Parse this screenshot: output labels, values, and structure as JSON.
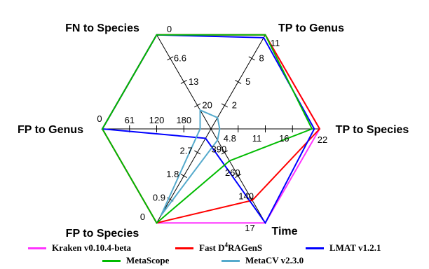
{
  "chart_data": {
    "type": "radar",
    "title": "",
    "axes": [
      {
        "name": "TP to Species",
        "ticks": [
          "4.8",
          "11",
          "16",
          "22"
        ]
      },
      {
        "name": "Time",
        "ticks": [
          "390",
          "260",
          "140",
          "17"
        ]
      },
      {
        "name": "FP to Species",
        "ticks": [
          "2.7",
          "1.8",
          "0.9",
          "0"
        ]
      },
      {
        "name": "FP to Genus",
        "ticks": [
          "180",
          "120",
          "61",
          "0"
        ]
      },
      {
        "name": "FN to Species",
        "ticks": [
          "20",
          "13",
          "6.6",
          "0"
        ]
      },
      {
        "name": "TP to Genus",
        "ticks": [
          "2",
          "5",
          "8",
          "11"
        ]
      }
    ],
    "series": [
      {
        "name": "Kraken v0.10.4-beta",
        "color": "#ff33ff",
        "values": [
          1.0,
          1.0,
          1.0,
          1.0,
          1.0,
          1.0
        ]
      },
      {
        "name": "Fast D⁴RAGenS",
        "color": "#ff0000",
        "values": [
          1.0,
          0.76,
          1.0,
          1.0,
          1.0,
          1.0
        ]
      },
      {
        "name": "LMAT v1.2.1",
        "color": "#0000ff",
        "values": [
          0.95,
          1.0,
          0.1,
          1.0,
          1.0,
          0.97
        ]
      },
      {
        "name": "MetaScope",
        "color": "#00bb00",
        "values": [
          0.93,
          0.34,
          1.0,
          1.0,
          1.0,
          1.0
        ]
      },
      {
        "name": "MetaCV v2.3.0",
        "color": "#55aacc",
        "values": [
          0.08,
          0.12,
          0.92,
          0.1,
          0.2,
          0.12
        ]
      }
    ]
  },
  "legend": {
    "row1": [
      {
        "label": "Kraken v0.10.4-beta"
      },
      {
        "label_pre": "Fast D",
        "label_sup": "4",
        "label_post": "RAGenS"
      },
      {
        "label": "LMAT v1.2.1"
      }
    ],
    "row2": [
      {
        "label": "MetaScope"
      },
      {
        "label": "MetaCV v2.3.0"
      }
    ]
  }
}
